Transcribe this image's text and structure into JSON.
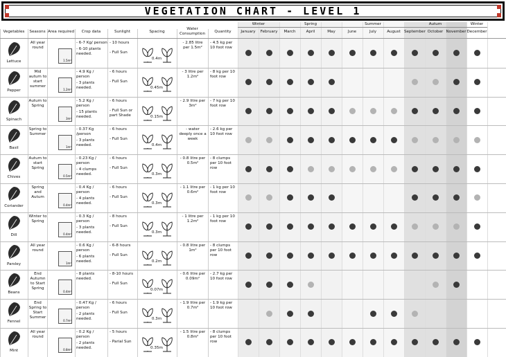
{
  "title": "VEGETATION CHART - LEVEL 1",
  "columns": [
    "Vegetables",
    "Seasons",
    "Area required",
    "Crop data",
    "Sunlight",
    "Spacing",
    "Water Consumption",
    "Quantity"
  ],
  "season_groups": [
    {
      "name": "Winter",
      "months": [
        "January",
        "February"
      ]
    },
    {
      "name": "Spring",
      "months": [
        "March",
        "April",
        "May"
      ]
    },
    {
      "name": "Summer",
      "months": [
        "June",
        "July",
        "August"
      ]
    },
    {
      "name": "Autum",
      "months": [
        "September",
        "October",
        "November"
      ]
    },
    {
      "name": "Winter",
      "months": [
        "December"
      ]
    }
  ],
  "rows": [
    {
      "name": "Lettuce",
      "seasons": "All year round",
      "area": "1.5m²",
      "crop_data": [
        "- 6-7 Kg/ person",
        "- 6-10 plants needed."
      ],
      "sunlight": [
        "- 10 hours",
        "- Full Sun"
      ],
      "spacing": "0.4m",
      "water": "- 2.85 litre per 1.5m²",
      "quantity": "- 4.5 kg per 10 foot row",
      "marks": [
        "dark",
        "dark",
        "dark",
        "dark",
        "dark",
        "dark",
        "dark",
        "dark",
        "dark",
        "dark",
        "dark",
        "dark"
      ]
    },
    {
      "name": "Pepper",
      "seasons": "Mid autum to start summer",
      "area": "1.2m²",
      "crop_data": [
        "- 4.9 Kg / person",
        "- 3 plants needed."
      ],
      "sunlight": [
        "- 6 hours",
        "- Full Sun"
      ],
      "spacing": "0.45m",
      "water": "- 3 litre per 1.2m²",
      "quantity": "- 8 kg per 10 foot row",
      "marks": [
        "dark",
        "dark",
        "dark",
        "dark",
        "dark",
        "none",
        "none",
        "none",
        "light",
        "light",
        "dark",
        "dark"
      ]
    },
    {
      "name": "Spinach",
      "seasons": "Autum to Spring",
      "area": "3m²",
      "crop_data": [
        "- 5.2 Kg / person",
        "- 15 plants needed."
      ],
      "sunlight": [
        "- 6 hours",
        "- Full Sun or part Shade"
      ],
      "spacing": "0.15m",
      "water": "- 2.9 litre per 3m²",
      "quantity": "- 7 kg per 10 foot row",
      "marks": [
        "dark",
        "dark",
        "dark",
        "dark",
        "dark",
        "light",
        "light",
        "light",
        "dark",
        "dark",
        "dark",
        "dark"
      ]
    },
    {
      "name": "Basil",
      "seasons": "Spring to Summer",
      "area": "1m²",
      "crop_data": [
        "- 0.37 Kg /person",
        "- 3 plants needed."
      ],
      "sunlight": [
        "- 6 hours",
        "- Full Sun"
      ],
      "spacing": "0.4m",
      "water": "- water deeply once a week",
      "quantity": "- 2.6 kg per 10 foot row",
      "marks": [
        "light",
        "light",
        "dark",
        "dark",
        "dark",
        "dark",
        "dark",
        "dark",
        "light",
        "light",
        "light",
        "light"
      ]
    },
    {
      "name": "Chives",
      "seasons": "Autum to start Spring",
      "area": "0.5m²",
      "crop_data": [
        "- 0.23 Kg / person",
        "- 4 clumps needed."
      ],
      "sunlight": [
        "- 6 hours",
        "- Full Sun"
      ],
      "spacing": "0.3m",
      "water": "- 0.8 litre per 0.5m²",
      "quantity": "- 8 clumps per 10 foot row",
      "marks": [
        "dark",
        "dark",
        "dark",
        "light",
        "light",
        "light",
        "light",
        "light",
        "dark",
        "dark",
        "dark",
        "dark"
      ]
    },
    {
      "name": "Coriander",
      "seasons": "Spring and Autum",
      "area": "0.4m²",
      "crop_data": [
        "- 0.4 Kg / person",
        "- 4 plants needed."
      ],
      "sunlight": [
        "- 6 hours",
        "- Full Sun"
      ],
      "spacing": "0.3m",
      "water": "- 1.1 litre per 0.6m²",
      "quantity": "- 1 kg per 10 foot row",
      "marks": [
        "light",
        "light",
        "dark",
        "dark",
        "dark",
        "none",
        "none",
        "none",
        "dark",
        "dark",
        "dark",
        "light"
      ]
    },
    {
      "name": "Dill",
      "seasons": "Winter to Spring",
      "area": "0.4m²",
      "crop_data": [
        "- 0.3 Kg / person",
        "- 3 plants needed."
      ],
      "sunlight": [
        "- 8 hours",
        "- Full Sun"
      ],
      "spacing": "0.3m",
      "water": "- 1 litre per 1.2m²",
      "quantity": "- 1 kg per 10 foot row",
      "marks": [
        "dark",
        "dark",
        "dark",
        "dark",
        "dark",
        "dark",
        "dark",
        "dark",
        "light",
        "light",
        "light",
        "dark"
      ]
    },
    {
      "name": "Parsley",
      "seasons": "All year round",
      "area": "1m²",
      "crop_data": [
        "- 0.6 Kg / person",
        "- 6 plants needed."
      ],
      "sunlight": [
        "- 6-8 hours",
        "- Full Sun"
      ],
      "spacing": "0.2m",
      "water": "- 0.8 litre per 1m²",
      "quantity": "- 8 clumps per 10 foot row",
      "marks": [
        "dark",
        "dark",
        "dark",
        "dark",
        "dark",
        "dark",
        "dark",
        "dark",
        "dark",
        "dark",
        "dark",
        "dark"
      ]
    },
    {
      "name": "Beans",
      "seasons": "End Autumn to Start Spring",
      "area": "0.4m²",
      "crop_data": [
        "- 8 plants needed."
      ],
      "sunlight": [
        "- 8-10 hours",
        "- Full Sun"
      ],
      "spacing": "0.07m",
      "water": "- 0.6 litre per 0.09m²",
      "quantity": "- 2.7 kg per 10 foot row",
      "marks": [
        "dark",
        "dark",
        "dark",
        "light",
        "none",
        "none",
        "none",
        "none",
        "none",
        "light",
        "dark",
        "none"
      ]
    },
    {
      "name": "Fennel",
      "seasons": "End Spring to Start Summer",
      "area": "0.7m²",
      "crop_data": [
        "- 0.47 Kg / person",
        "- 2 plants needed."
      ],
      "sunlight": [
        "- 6 hours",
        "- Full Sun"
      ],
      "spacing": "0.3m",
      "water": "- 1.9 litre per 0.7m²",
      "quantity": "- 1.9 kg per 10 foot row",
      "marks": [
        "none",
        "light",
        "dark",
        "dark",
        "none",
        "none",
        "dark",
        "dark",
        "light",
        "none",
        "none",
        "none"
      ]
    },
    {
      "name": "Mint",
      "seasons": "All year round",
      "area": "0.8m²",
      "crop_data": [
        "- 0.2 Kg / person",
        "- 2 plants needed."
      ],
      "sunlight": [
        "- 5 hours",
        "- Parial Sun"
      ],
      "spacing": "0.35m",
      "water": "- 1.5 litre per 0.8m²",
      "quantity": "- 8 clumps per 10 foot row",
      "marks": [
        "dark",
        "dark",
        "dark",
        "dark",
        "dark",
        "dark",
        "dark",
        "dark",
        "dark",
        "dark",
        "dark",
        "dark"
      ]
    }
  ]
}
